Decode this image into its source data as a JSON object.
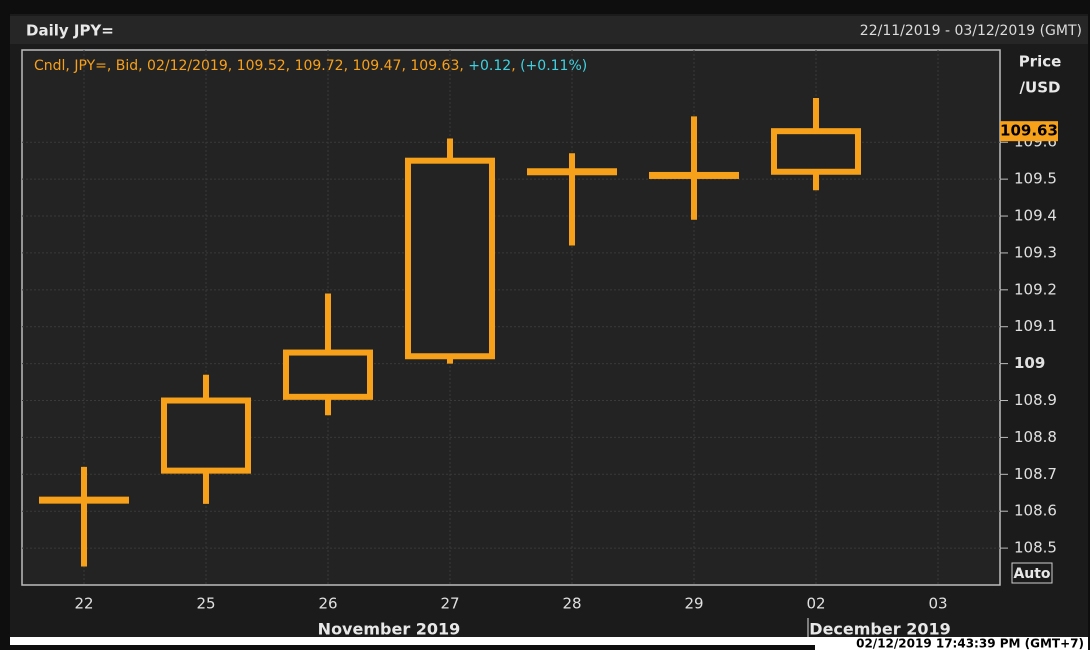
{
  "header": {
    "title": "Daily JPY=",
    "range": "22/11/2019 - 03/12/2019 (GMT)"
  },
  "info": {
    "prefix": "Cndl, JPY=, Bid, 02/12/2019",
    "change": "+0.12",
    "change_pct": "(+0.11%)"
  },
  "axis_title": [
    "Price",
    "/USD"
  ],
  "auto_button": "Auto",
  "timestamp": "02/12/2019 17:43:39 PM  (GMT+7)",
  "chart_data": {
    "type": "candlestick",
    "color": "#f7a11a",
    "categories": [
      "22",
      "25",
      "26",
      "27",
      "28",
      "29",
      "02",
      "03"
    ],
    "months": [
      {
        "label": "November 2019",
        "from": 0,
        "to": 5
      },
      {
        "label": "December 2019",
        "from": 6,
        "to": 7
      }
    ],
    "open": [
      108.63,
      108.71,
      108.91,
      109.02,
      109.52,
      109.51,
      109.52,
      null
    ],
    "high": [
      108.72,
      108.97,
      109.19,
      109.61,
      109.57,
      109.67,
      109.72,
      null
    ],
    "low": [
      108.45,
      108.62,
      108.86,
      109.0,
      109.32,
      109.39,
      109.47,
      null
    ],
    "close": [
      108.63,
      108.9,
      109.03,
      109.55,
      109.52,
      109.51,
      109.63,
      null
    ],
    "ylim": [
      108.4,
      109.85
    ],
    "yticks": [
      108.5,
      108.6,
      108.7,
      108.8,
      108.9,
      109,
      109.1,
      109.2,
      109.3,
      109.4,
      109.5,
      109.6
    ],
    "bold_tick": 109,
    "grid": true
  }
}
